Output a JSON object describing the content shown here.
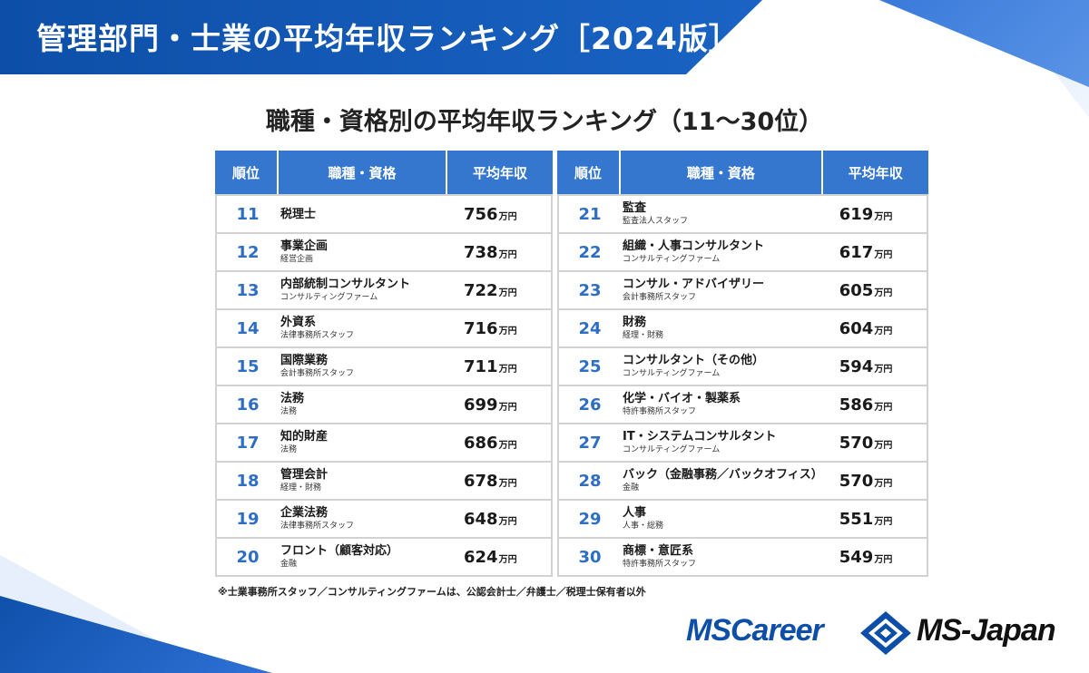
{
  "banner": {
    "title": "管理部門・士業の平均年収ランキング［2024版］"
  },
  "subtitle": "職種・資格別の平均年収ランキング（11〜30位）",
  "table_headers": {
    "rank": "順位",
    "job": "職種・資格",
    "salary": "平均年収"
  },
  "salary_unit": "万円",
  "left_rows": [
    {
      "rank": "11",
      "title": "税理士",
      "sub": "",
      "salary": "756"
    },
    {
      "rank": "12",
      "title": "事業企画",
      "sub": "経営企画",
      "salary": "738"
    },
    {
      "rank": "13",
      "title": "内部統制コンサルタント",
      "sub": "コンサルティングファーム",
      "salary": "722"
    },
    {
      "rank": "14",
      "title": "外資系",
      "sub": "法律事務所スタッフ",
      "salary": "716"
    },
    {
      "rank": "15",
      "title": "国際業務",
      "sub": "会計事務所スタッフ",
      "salary": "711"
    },
    {
      "rank": "16",
      "title": "法務",
      "sub": "法務",
      "salary": "699"
    },
    {
      "rank": "17",
      "title": "知的財産",
      "sub": "法務",
      "salary": "686"
    },
    {
      "rank": "18",
      "title": "管理会計",
      "sub": "経理・財務",
      "salary": "678"
    },
    {
      "rank": "19",
      "title": "企業法務",
      "sub": "法律事務所スタッフ",
      "salary": "648"
    },
    {
      "rank": "20",
      "title": "フロント（顧客対応）",
      "sub": "金融",
      "salary": "624"
    }
  ],
  "right_rows": [
    {
      "rank": "21",
      "title": "監査",
      "sub": "監査法人スタッフ",
      "salary": "619"
    },
    {
      "rank": "22",
      "title": "組織・人事コンサルタント",
      "sub": "コンサルティングファーム",
      "salary": "617"
    },
    {
      "rank": "23",
      "title": "コンサル・アドバイザリー",
      "sub": "会計事務所スタッフ",
      "salary": "605"
    },
    {
      "rank": "24",
      "title": "財務",
      "sub": "経理・財務",
      "salary": "604"
    },
    {
      "rank": "25",
      "title": "コンサルタント（その他）",
      "sub": "コンサルティングファーム",
      "salary": "594"
    },
    {
      "rank": "26",
      "title": "化学・バイオ・製薬系",
      "sub": "特許事務所スタッフ",
      "salary": "586"
    },
    {
      "rank": "27",
      "title": "IT・システムコンサルタント",
      "sub": "コンサルティングファーム",
      "salary": "570"
    },
    {
      "rank": "28",
      "title": "バック（金融事務／バックオフィス）",
      "sub": "金融",
      "salary": "570"
    },
    {
      "rank": "29",
      "title": "人事",
      "sub": "人事・総務",
      "salary": "551"
    },
    {
      "rank": "30",
      "title": "商標・意匠系",
      "sub": "特許事務所スタッフ",
      "salary": "549"
    }
  ],
  "footnote": "※士業事務所スタッフ／コンサルティングファームは、公認会計士／弁護士／税理士保有者以外",
  "logos": {
    "left": "MSCareer",
    "right": "MS-Japan",
    "mark": "ms-diamond-logo-icon"
  },
  "colors": {
    "primary_blue": "#0d4fa8",
    "header_blue": "#3577cf",
    "rank_blue": "#2d6ec4",
    "border_gray": "#d2d2d2"
  }
}
